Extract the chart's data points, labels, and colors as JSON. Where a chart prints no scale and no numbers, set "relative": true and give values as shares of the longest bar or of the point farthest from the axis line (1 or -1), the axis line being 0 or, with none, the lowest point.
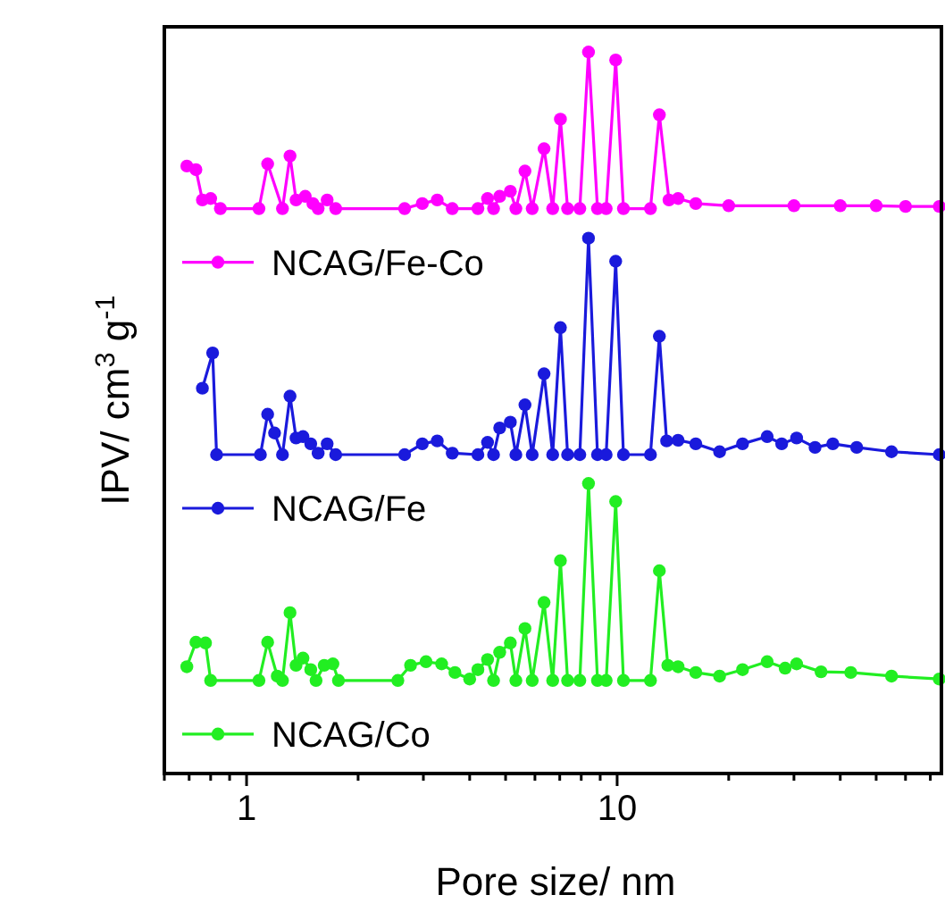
{
  "chart_data": {
    "type": "line",
    "relative": true,
    "xlabel": "Pore size/ nm",
    "ylabel": "IPV/ cm$^{3}$ g$^{-1}$",
    "log": "x",
    "xlim": [
      0.6,
      75
    ],
    "xticks": [
      {
        "value": 0.6,
        "label": null
      },
      {
        "value": 0.7,
        "label": null
      },
      {
        "value": 0.8,
        "label": null
      },
      {
        "value": 0.9,
        "label": null
      },
      1,
      {
        "value": 2,
        "label": null
      },
      {
        "value": 3,
        "label": null
      },
      {
        "value": 4,
        "label": null
      },
      {
        "value": 5,
        "label": null
      },
      {
        "value": 6,
        "label": null
      },
      {
        "value": 7,
        "label": null
      },
      {
        "value": 8,
        "label": null
      },
      {
        "value": 9,
        "label": null
      },
      10,
      {
        "value": 20,
        "label": null
      },
      {
        "value": 30,
        "label": null
      },
      {
        "value": 40,
        "label": null
      },
      {
        "value": 50,
        "label": null
      },
      {
        "value": 60,
        "label": null
      },
      {
        "value": 70,
        "label": null
      }
    ],
    "marker": "circle",
    "line_style": "solid",
    "legend": "left",
    "grid": false,
    "series": [
      {
        "name": "NCAG/Fe-Co",
        "color": "#ff00ff",
        "x": [
          0.69,
          0.73,
          0.76,
          0.8,
          0.85,
          1.08,
          1.14,
          1.25,
          1.31,
          1.36,
          1.44,
          1.51,
          1.56,
          1.65,
          1.74,
          2.67,
          2.98,
          3.27,
          3.59,
          4.21,
          4.47,
          4.64,
          4.82,
          5.15,
          5.33,
          5.64,
          5.9,
          6.35,
          6.7,
          7.03,
          7.35,
          7.93,
          8.37,
          8.85,
          9.34,
          9.91,
          10.4,
          12.3,
          13,
          13.8,
          14.6,
          16.3,
          20,
          30,
          40,
          50,
          60,
          74
        ],
        "values": [
          0.842,
          0.837,
          0.795,
          0.797,
          0.783,
          0.783,
          0.845,
          0.783,
          0.856,
          0.795,
          0.8,
          0.79,
          0.783,
          0.795,
          0.783,
          0.783,
          0.79,
          0.795,
          0.783,
          0.783,
          0.797,
          0.783,
          0.8,
          0.807,
          0.783,
          0.835,
          0.783,
          0.866,
          0.783,
          0.907,
          0.783,
          0.783,
          1,
          0.783,
          0.783,
          0.989,
          0.783,
          0.783,
          0.913,
          0.795,
          0.797,
          0.79,
          0.787,
          0.787,
          0.787,
          0.787,
          0.786,
          0.786
        ]
      },
      {
        "name": "NCAG/Fe",
        "color": "#1a1adc",
        "x": [
          0.76,
          0.81,
          0.83,
          1.09,
          1.14,
          1.19,
          1.25,
          1.31,
          1.36,
          1.42,
          1.49,
          1.56,
          1.65,
          1.74,
          2.67,
          2.98,
          3.27,
          3.59,
          4.21,
          4.47,
          4.64,
          4.82,
          5.15,
          5.33,
          5.64,
          5.9,
          6.35,
          6.7,
          7.03,
          7.35,
          7.93,
          8.37,
          8.85,
          9.34,
          9.91,
          10.4,
          12.3,
          13,
          13.6,
          14.6,
          16.3,
          18.9,
          21.8,
          25.4,
          27.8,
          30.5,
          34.2,
          38.2,
          44.3,
          55,
          74
        ],
        "values": [
          0.534,
          0.583,
          0.442,
          0.442,
          0.498,
          0.472,
          0.442,
          0.523,
          0.465,
          0.467,
          0.457,
          0.444,
          0.457,
          0.442,
          0.442,
          0.457,
          0.461,
          0.444,
          0.442,
          0.459,
          0.442,
          0.479,
          0.487,
          0.442,
          0.511,
          0.442,
          0.554,
          0.442,
          0.618,
          0.442,
          0.442,
          0.742,
          0.442,
          0.442,
          0.71,
          0.442,
          0.442,
          0.606,
          0.461,
          0.462,
          0.457,
          0.446,
          0.457,
          0.467,
          0.457,
          0.465,
          0.452,
          0.457,
          0.452,
          0.446,
          0.442
        ]
      },
      {
        "name": "NCAG/Co",
        "color": "#22ee22",
        "x": [
          0.69,
          0.73,
          0.775,
          0.8,
          1.08,
          1.14,
          1.21,
          1.25,
          1.31,
          1.36,
          1.42,
          1.49,
          1.54,
          1.62,
          1.71,
          1.77,
          2.56,
          2.77,
          3.05,
          3.36,
          3.65,
          4,
          4.21,
          4.47,
          4.64,
          4.82,
          5.15,
          5.33,
          5.64,
          5.9,
          6.35,
          6.7,
          7.03,
          7.35,
          7.93,
          8.37,
          8.85,
          9.34,
          9.91,
          10.4,
          12.3,
          13,
          13.7,
          14.6,
          16.3,
          18.9,
          21.8,
          25.4,
          28.4,
          30.5,
          35.5,
          42.7,
          55,
          74
        ],
        "values": [
          0.148,
          0.182,
          0.181,
          0.129,
          0.129,
          0.182,
          0.135,
          0.129,
          0.223,
          0.15,
          0.16,
          0.144,
          0.129,
          0.15,
          0.152,
          0.129,
          0.129,
          0.15,
          0.155,
          0.152,
          0.14,
          0.131,
          0.144,
          0.158,
          0.129,
          0.168,
          0.181,
          0.129,
          0.201,
          0.129,
          0.237,
          0.129,
          0.295,
          0.129,
          0.129,
          0.402,
          0.129,
          0.129,
          0.377,
          0.129,
          0.129,
          0.281,
          0.15,
          0.148,
          0.14,
          0.135,
          0.144,
          0.155,
          0.146,
          0.152,
          0.141,
          0.14,
          0.135,
          0.131
        ]
      }
    ]
  }
}
